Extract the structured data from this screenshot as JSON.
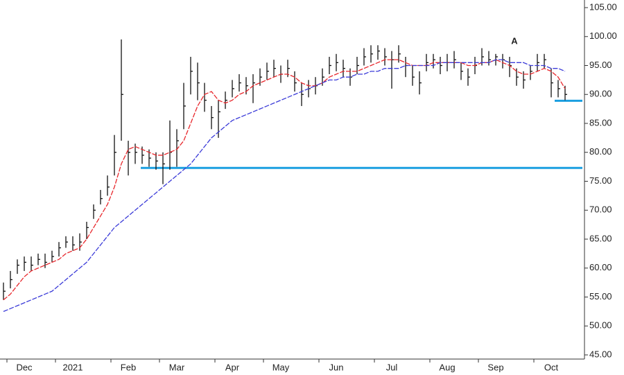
{
  "chart_data": {
    "type": "ohlc",
    "annotation": "A",
    "categories": [
      null,
      null,
      null,
      "Dec",
      null,
      null,
      null,
      null,
      null,
      null,
      "2021",
      null,
      null,
      null,
      null,
      null,
      null,
      null,
      "Feb",
      null,
      null,
      null,
      null,
      null,
      null,
      "Mar",
      null,
      null,
      null,
      null,
      null,
      null,
      null,
      "Apr",
      null,
      null,
      null,
      null,
      null,
      null,
      "May",
      null,
      null,
      null,
      null,
      null,
      null,
      null,
      "Jun",
      null,
      null,
      null,
      null,
      null,
      null,
      null,
      "Jul",
      null,
      null,
      null,
      null,
      null,
      null,
      null,
      "Aug",
      null,
      null,
      null,
      null,
      null,
      null,
      "Sep",
      null,
      null,
      null,
      null,
      null,
      null,
      null,
      "Oct",
      null,
      null
    ],
    "high": [
      57.5,
      59.5,
      61.5,
      62,
      62,
      62.5,
      62.5,
      63,
      64.5,
      65.5,
      65.5,
      66,
      68,
      71,
      73.5,
      76,
      83,
      99.5,
      82,
      81.5,
      81,
      80.5,
      80,
      80,
      85.5,
      84,
      92,
      96.5,
      95.5,
      92,
      88,
      89,
      90.5,
      92.5,
      93.5,
      93,
      93.5,
      94.5,
      95.5,
      96,
      95,
      96,
      94,
      92,
      92.5,
      93,
      94.5,
      96.5,
      97,
      96,
      94.5,
      96.5,
      98,
      98.5,
      98.5,
      98,
      97.5,
      98.5,
      96.5,
      95,
      94,
      97,
      97,
      96.5,
      97,
      97.5,
      95.5,
      94.5,
      96.5,
      98,
      97.5,
      97,
      97,
      96.5,
      94.5,
      94,
      95,
      97,
      97,
      94.5,
      92.5,
      91.5
    ],
    "low": [
      54.5,
      56.5,
      59,
      59.5,
      59.5,
      60.5,
      60,
      61,
      62,
      63.5,
      63,
      63,
      65,
      68.5,
      71,
      72.5,
      76,
      82,
      76,
      78,
      78,
      77.5,
      77,
      74.5,
      77,
      77.5,
      84,
      90,
      89,
      87,
      84,
      82.5,
      87.5,
      89.5,
      90.5,
      90,
      88.5,
      91.5,
      92.5,
      93,
      92,
      93,
      90.5,
      88,
      89.5,
      90,
      91.5,
      93.5,
      94,
      93,
      91.5,
      93.5,
      95,
      95.5,
      96,
      95,
      91,
      95.5,
      93,
      91.5,
      90,
      94,
      94.5,
      93.5,
      94,
      94.5,
      92.5,
      91.5,
      93.5,
      95,
      95,
      95,
      94.5,
      93,
      91.5,
      91,
      92.5,
      94,
      94.5,
      89.5,
      89.5,
      89
    ],
    "close": [
      56,
      58,
      60.5,
      61,
      60.5,
      61.5,
      61,
      62,
      63.5,
      64.5,
      64,
      64.5,
      67,
      70,
      72,
      74,
      80,
      90,
      80,
      80,
      79.5,
      79,
      78.5,
      78,
      80,
      82,
      88,
      94,
      92,
      89,
      86,
      87,
      89,
      91,
      92,
      91.5,
      92,
      93,
      94,
      94.5,
      93.5,
      94.5,
      92,
      90,
      91,
      91.5,
      93,
      95,
      95.5,
      94.5,
      93,
      95,
      96.5,
      97,
      97.5,
      96.5,
      96,
      97,
      95,
      93,
      92,
      95.5,
      96,
      95,
      95.5,
      96,
      94,
      93,
      95,
      96.5,
      96,
      96.5,
      96,
      95,
      93,
      92.5,
      94,
      95.5,
      96,
      92,
      91,
      90
    ],
    "color": "#111111",
    "lines": [
      {
        "color": "#e8262b",
        "values": [
          54.5,
          55.5,
          57,
          58.5,
          59.5,
          60,
          60.5,
          61,
          61.5,
          62.5,
          63,
          63.5,
          65,
          67,
          69,
          71,
          74,
          78,
          80.5,
          81,
          80.5,
          80,
          79.5,
          79.5,
          80,
          80.5,
          82,
          85,
          88,
          90,
          90.5,
          89,
          88.5,
          89,
          90,
          90.5,
          91.5,
          92,
          92.5,
          93,
          93.5,
          93.5,
          93,
          92,
          91.5,
          91.5,
          92,
          93,
          93.5,
          94,
          94,
          94,
          94.5,
          95,
          95.5,
          96,
          96,
          96,
          95.5,
          95,
          95,
          95,
          95.5,
          95.5,
          95.5,
          95.5,
          95.5,
          95,
          95,
          95.5,
          95.5,
          96,
          95.5,
          95,
          94,
          93.5,
          93.5,
          94,
          94.5,
          94,
          93,
          91
        ]
      },
      {
        "color": "#3a3ad8",
        "values": [
          52.5,
          53,
          53.5,
          54,
          54.5,
          55,
          55.5,
          56,
          57,
          58,
          59,
          60,
          61,
          62.5,
          64,
          65.5,
          67,
          68,
          69,
          70,
          71,
          72,
          73,
          74,
          75,
          76,
          77,
          78,
          79.5,
          81,
          82.5,
          83.5,
          84.5,
          85.5,
          86,
          86.5,
          87,
          87.5,
          88,
          88.5,
          89,
          89.5,
          90,
          90.5,
          91,
          91.5,
          92,
          92.5,
          92.5,
          93,
          93,
          93.5,
          93.5,
          94,
          94,
          94.5,
          94.5,
          94.5,
          95,
          95,
          95,
          95,
          95,
          95.5,
          95.5,
          95.5,
          95.5,
          95.5,
          95.5,
          95.5,
          95.5,
          96,
          96,
          95.5,
          95.5,
          95.5,
          95,
          95,
          95,
          94.5,
          94.5,
          94
        ]
      }
    ],
    "hlines": [
      77.3,
      88.9
    ],
    "hline_color": "#1a9fe0",
    "ylim": [
      45,
      105
    ],
    "yticks": [
      {
        "value": 45,
        "label": "45.00"
      },
      {
        "value": 50,
        "label": "50.00"
      },
      {
        "value": 55,
        "label": "55.00"
      },
      {
        "value": 60,
        "label": "60.00"
      },
      {
        "value": 65,
        "label": "65.00"
      },
      {
        "value": 70,
        "label": "70.00"
      },
      {
        "value": 75,
        "label": "75.00"
      },
      {
        "value": 80,
        "label": "80.00"
      },
      {
        "value": 85,
        "label": "85.00"
      },
      {
        "value": 90,
        "label": "90.00"
      },
      {
        "value": 95,
        "label": "95.00"
      },
      {
        "value": 100,
        "label": "100.00"
      },
      {
        "value": 105,
        "label": "105.00"
      }
    ]
  }
}
